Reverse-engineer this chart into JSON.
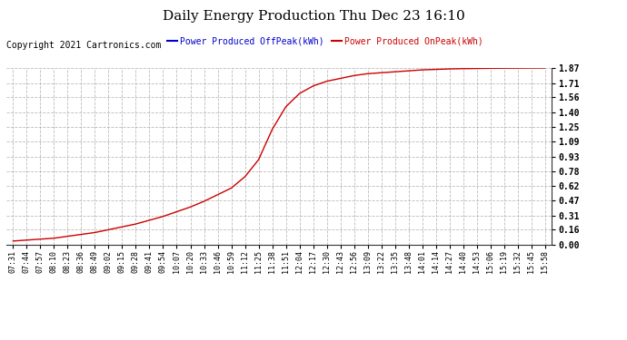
{
  "title": "Daily Energy Production Thu Dec 23 16:10",
  "copyright_text": "Copyright 2021 Cartronics.com",
  "legend_offpeak": "Power Produced OffPeak(kWh)",
  "legend_onpeak": "Power Produced OnPeak(kWh)",
  "line_color": "#cc0000",
  "offpeak_legend_color": "#0000cc",
  "onpeak_legend_color": "#cc0000",
  "background_color": "#ffffff",
  "grid_color": "#aaaaaa",
  "yticks": [
    0.0,
    0.16,
    0.31,
    0.47,
    0.62,
    0.78,
    0.93,
    1.09,
    1.25,
    1.4,
    1.56,
    1.71,
    1.87
  ],
  "x_labels": [
    "07:31",
    "07:44",
    "07:57",
    "08:10",
    "08:23",
    "08:36",
    "08:49",
    "09:02",
    "09:15",
    "09:28",
    "09:41",
    "09:54",
    "10:07",
    "10:20",
    "10:33",
    "10:46",
    "10:59",
    "11:12",
    "11:25",
    "11:38",
    "11:51",
    "12:04",
    "12:17",
    "12:30",
    "12:43",
    "12:56",
    "13:09",
    "13:22",
    "13:35",
    "13:48",
    "14:01",
    "14:14",
    "14:27",
    "14:40",
    "14:53",
    "15:06",
    "15:19",
    "15:32",
    "15:45",
    "15:58"
  ],
  "key_y": [
    0.04,
    0.05,
    0.06,
    0.07,
    0.09,
    0.11,
    0.13,
    0.16,
    0.19,
    0.22,
    0.26,
    0.3,
    0.35,
    0.4,
    0.46,
    0.53,
    0.6,
    0.72,
    0.9,
    1.22,
    1.46,
    1.6,
    1.68,
    1.73,
    1.76,
    1.79,
    1.81,
    1.82,
    1.83,
    1.84,
    1.85,
    1.855,
    1.86,
    1.863,
    1.865,
    1.867,
    1.868,
    1.869,
    1.87,
    1.87
  ],
  "ymax": 1.87,
  "ymin": 0.0,
  "title_fontsize": 11,
  "tick_fontsize": 7,
  "legend_fontsize": 7,
  "copyright_fontsize": 7
}
